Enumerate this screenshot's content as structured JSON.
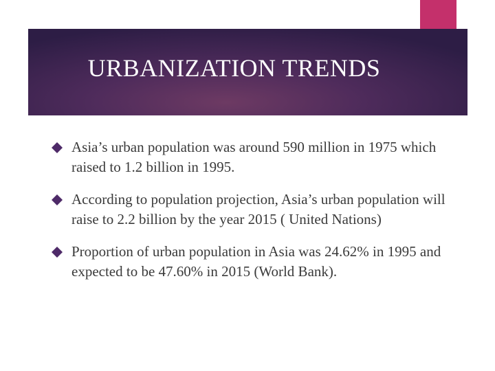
{
  "slide": {
    "title": "URBANIZATION TRENDS",
    "colors": {
      "accent": "#c4306b",
      "title_band_dark": "#2d1d45",
      "title_band_light": "#6d3a63",
      "bullet": "#4e2a68",
      "text": "#3a3a3a"
    },
    "bullet_icon": "diamond-bullet-icon",
    "bullets": [
      {
        "text": "Asia’s urban population was around 590 million in 1975 which raised to 1.2 billion in 1995."
      },
      {
        "text": "According to population projection, Asia’s urban population will raise to 2.2 billion  by the year 2015 ( United Nations)"
      },
      {
        "text": "Proportion of urban population in Asia was 24.62% in 1995 and expected to be 47.60% in 2015 (World Bank)."
      }
    ]
  }
}
